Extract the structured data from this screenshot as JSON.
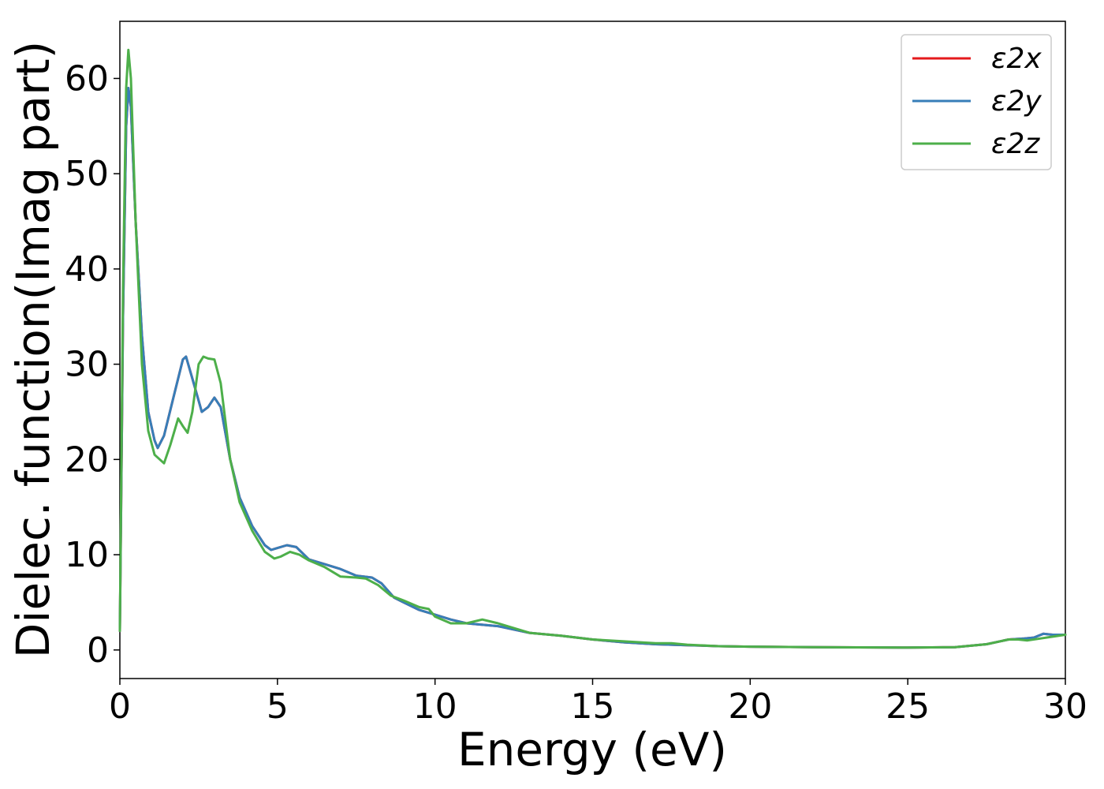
{
  "chart_data": {
    "type": "line",
    "title": "",
    "xlabel": "Energy (eV)",
    "ylabel": "Dielec. function(Imag part)",
    "xlim": [
      0,
      30
    ],
    "ylim": [
      -3,
      66
    ],
    "x_ticks": [
      0,
      5,
      10,
      15,
      20,
      25,
      30
    ],
    "y_ticks": [
      0,
      10,
      20,
      30,
      40,
      50,
      60
    ],
    "grid": false,
    "legend_position": "top-right",
    "series": [
      {
        "name": "ε2x",
        "color": "#e41a1c",
        "points": [
          [
            0,
            2
          ],
          [
            0.1,
            35
          ],
          [
            0.2,
            55
          ],
          [
            0.27,
            59
          ],
          [
            0.35,
            57
          ],
          [
            0.5,
            45
          ],
          [
            0.7,
            33
          ],
          [
            0.9,
            25
          ],
          [
            1.1,
            22
          ],
          [
            1.2,
            21.2
          ],
          [
            1.4,
            22.5
          ],
          [
            1.7,
            26.5
          ],
          [
            2.0,
            30.5
          ],
          [
            2.1,
            30.8
          ],
          [
            2.3,
            28.5
          ],
          [
            2.6,
            25
          ],
          [
            2.8,
            25.5
          ],
          [
            3.0,
            26.5
          ],
          [
            3.2,
            25.5
          ],
          [
            3.5,
            20
          ],
          [
            3.8,
            16
          ],
          [
            4.2,
            13
          ],
          [
            4.6,
            11
          ],
          [
            4.8,
            10.5
          ],
          [
            5.0,
            10.7
          ],
          [
            5.3,
            11
          ],
          [
            5.6,
            10.8
          ],
          [
            6.0,
            9.5
          ],
          [
            6.5,
            9
          ],
          [
            7.0,
            8.5
          ],
          [
            7.5,
            7.8
          ],
          [
            8.0,
            7.6
          ],
          [
            8.3,
            7
          ],
          [
            8.7,
            5.5
          ],
          [
            9.0,
            5
          ],
          [
            9.5,
            4.2
          ],
          [
            10,
            3.7
          ],
          [
            10.5,
            3.2
          ],
          [
            11,
            2.8
          ],
          [
            12,
            2.5
          ],
          [
            13,
            1.8
          ],
          [
            14,
            1.5
          ],
          [
            15,
            1.1
          ],
          [
            16,
            0.8
          ],
          [
            17,
            0.6
          ],
          [
            18,
            0.5
          ],
          [
            19,
            0.4
          ],
          [
            20,
            0.35
          ],
          [
            22,
            0.3
          ],
          [
            25,
            0.25
          ],
          [
            26.5,
            0.3
          ],
          [
            27.5,
            0.6
          ],
          [
            28.2,
            1.1
          ],
          [
            28.7,
            1.2
          ],
          [
            29.0,
            1.3
          ],
          [
            29.3,
            1.7
          ],
          [
            29.6,
            1.6
          ],
          [
            30,
            1.6
          ]
        ]
      },
      {
        "name": "ε2y",
        "color": "#377eb8",
        "points": [
          [
            0,
            2
          ],
          [
            0.1,
            35
          ],
          [
            0.2,
            55
          ],
          [
            0.27,
            59
          ],
          [
            0.35,
            57
          ],
          [
            0.5,
            45
          ],
          [
            0.7,
            33
          ],
          [
            0.9,
            25
          ],
          [
            1.1,
            22
          ],
          [
            1.2,
            21.2
          ],
          [
            1.4,
            22.5
          ],
          [
            1.7,
            26.5
          ],
          [
            2.0,
            30.5
          ],
          [
            2.1,
            30.8
          ],
          [
            2.3,
            28.5
          ],
          [
            2.6,
            25
          ],
          [
            2.8,
            25.5
          ],
          [
            3.0,
            26.5
          ],
          [
            3.2,
            25.5
          ],
          [
            3.5,
            20
          ],
          [
            3.8,
            16
          ],
          [
            4.2,
            13
          ],
          [
            4.6,
            11
          ],
          [
            4.8,
            10.5
          ],
          [
            5.0,
            10.7
          ],
          [
            5.3,
            11
          ],
          [
            5.6,
            10.8
          ],
          [
            6.0,
            9.5
          ],
          [
            6.5,
            9
          ],
          [
            7.0,
            8.5
          ],
          [
            7.5,
            7.8
          ],
          [
            8.0,
            7.6
          ],
          [
            8.3,
            7
          ],
          [
            8.7,
            5.5
          ],
          [
            9.0,
            5
          ],
          [
            9.5,
            4.2
          ],
          [
            10,
            3.7
          ],
          [
            10.5,
            3.2
          ],
          [
            11,
            2.8
          ],
          [
            12,
            2.5
          ],
          [
            13,
            1.8
          ],
          [
            14,
            1.5
          ],
          [
            15,
            1.1
          ],
          [
            16,
            0.8
          ],
          [
            17,
            0.6
          ],
          [
            18,
            0.5
          ],
          [
            19,
            0.4
          ],
          [
            20,
            0.35
          ],
          [
            22,
            0.3
          ],
          [
            25,
            0.25
          ],
          [
            26.5,
            0.3
          ],
          [
            27.5,
            0.6
          ],
          [
            28.2,
            1.1
          ],
          [
            28.7,
            1.2
          ],
          [
            29.0,
            1.3
          ],
          [
            29.3,
            1.7
          ],
          [
            29.6,
            1.6
          ],
          [
            30,
            1.6
          ]
        ]
      },
      {
        "name": "ε2z",
        "color": "#4daf4a",
        "points": [
          [
            0,
            2
          ],
          [
            0.1,
            38
          ],
          [
            0.2,
            59
          ],
          [
            0.27,
            63
          ],
          [
            0.35,
            60
          ],
          [
            0.5,
            45
          ],
          [
            0.7,
            30
          ],
          [
            0.9,
            23
          ],
          [
            1.1,
            20.5
          ],
          [
            1.4,
            19.6
          ],
          [
            1.6,
            21.5
          ],
          [
            1.85,
            24.3
          ],
          [
            2.0,
            23.5
          ],
          [
            2.15,
            22.8
          ],
          [
            2.3,
            25
          ],
          [
            2.5,
            30
          ],
          [
            2.65,
            30.8
          ],
          [
            2.8,
            30.6
          ],
          [
            3.0,
            30.5
          ],
          [
            3.2,
            28
          ],
          [
            3.5,
            20
          ],
          [
            3.8,
            15.5
          ],
          [
            4.2,
            12.5
          ],
          [
            4.6,
            10.3
          ],
          [
            4.9,
            9.6
          ],
          [
            5.1,
            9.8
          ],
          [
            5.4,
            10.3
          ],
          [
            5.7,
            10
          ],
          [
            6.0,
            9.4
          ],
          [
            6.5,
            8.7
          ],
          [
            7.0,
            7.7
          ],
          [
            7.5,
            7.6
          ],
          [
            7.8,
            7.5
          ],
          [
            8.2,
            6.8
          ],
          [
            8.6,
            5.7
          ],
          [
            9.0,
            5.2
          ],
          [
            9.5,
            4.5
          ],
          [
            9.8,
            4.3
          ],
          [
            10,
            3.5
          ],
          [
            10.5,
            2.8
          ],
          [
            11,
            2.8
          ],
          [
            11.5,
            3.2
          ],
          [
            12,
            2.8
          ],
          [
            12.5,
            2.3
          ],
          [
            13,
            1.8
          ],
          [
            14,
            1.5
          ],
          [
            15,
            1.1
          ],
          [
            16,
            0.9
          ],
          [
            17,
            0.7
          ],
          [
            17.5,
            0.7
          ],
          [
            18,
            0.55
          ],
          [
            19,
            0.4
          ],
          [
            20,
            0.35
          ],
          [
            22,
            0.3
          ],
          [
            25,
            0.25
          ],
          [
            26.5,
            0.3
          ],
          [
            27.5,
            0.6
          ],
          [
            28.2,
            1.1
          ],
          [
            28.5,
            1.1
          ],
          [
            28.8,
            1.0
          ],
          [
            29.2,
            1.2
          ],
          [
            29.6,
            1.4
          ],
          [
            30,
            1.6
          ]
        ]
      }
    ]
  }
}
